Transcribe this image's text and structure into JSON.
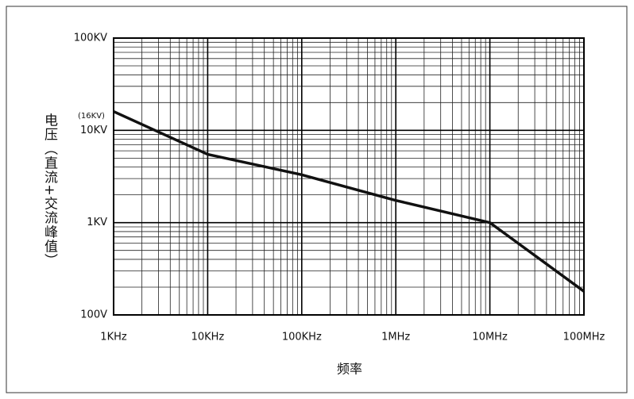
{
  "chart_data": {
    "type": "line",
    "y_label": "电压（直流+交流峰值）",
    "x_label": "频率",
    "annotation": "(16KV)",
    "x": [
      1000,
      10000,
      100000,
      1000000,
      10000000,
      100000000
    ],
    "series": [
      {
        "color": "#111111",
        "values": [
          16000,
          5500,
          3300,
          1740,
          1000,
          180
        ]
      }
    ],
    "xlim": [
      1000,
      100000000
    ],
    "xticks": [
      {
        "value": 1000,
        "label": "1KHz"
      },
      {
        "value": 10000,
        "label": "10KHz"
      },
      {
        "value": 100000,
        "label": "100KHz"
      },
      {
        "value": 1000000,
        "label": "1MHz"
      },
      {
        "value": 10000000,
        "label": "10MHz"
      },
      {
        "value": 100000000,
        "label": "100MHz"
      }
    ],
    "ylim": [
      100,
      100000
    ],
    "yticks": [
      {
        "value": 100,
        "label": "100V"
      },
      {
        "value": 1000,
        "label": "1KV"
      },
      {
        "value": 10000,
        "label": "10KV"
      },
      {
        "value": 100000,
        "label": "100KV"
      }
    ],
    "log_x": true,
    "log_y": true,
    "grid": true
  }
}
